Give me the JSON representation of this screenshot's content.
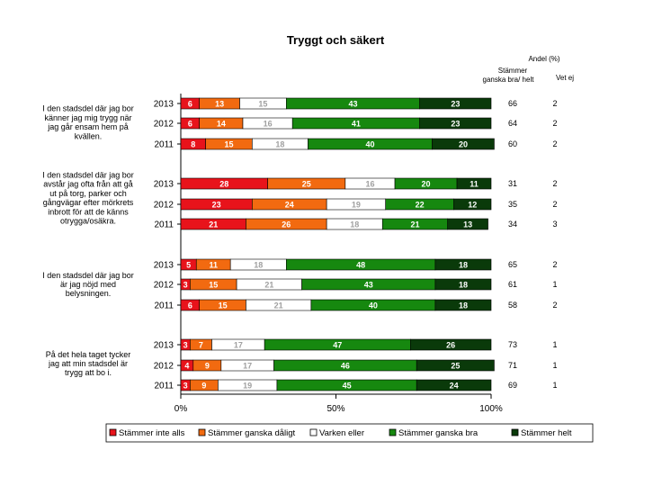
{
  "chart_data": {
    "type": "bar",
    "stacked": true,
    "orientation": "horizontal",
    "title": "Tryggt och säkert",
    "right_header": {
      "title": "Andel (%)",
      "col1": [
        "Stämmer",
        "ganska bra/ helt"
      ],
      "col2": "Vet ej"
    },
    "x_ticks": [
      "0%",
      "50%",
      "100%"
    ],
    "xlim": [
      0,
      100
    ],
    "series": [
      {
        "name": "Stämmer inte alls",
        "color": "#e8131b",
        "label_color": "#ffffff"
      },
      {
        "name": "Stämmer ganska dåligt",
        "color": "#f26a10",
        "label_color": "#ffffff"
      },
      {
        "name": "Varken eller",
        "color": "#ffffff",
        "label_color": "#a0a0a0"
      },
      {
        "name": "Stämmer ganska bra",
        "color": "#16880f",
        "label_color": "#ffffff"
      },
      {
        "name": "Stämmer helt",
        "color": "#0a3a0a",
        "label_color": "#ffffff"
      }
    ],
    "groups": [
      {
        "question": [
          "I den stadsdel där jag bor",
          "känner jag mig trygg när",
          "jag går ensam hem på",
          "kvällen."
        ],
        "rows": [
          {
            "year": "2013",
            "values": [
              6,
              13,
              15,
              43,
              23
            ],
            "agree": "66",
            "dont_know": "2"
          },
          {
            "year": "2012",
            "values": [
              6,
              14,
              16,
              41,
              23
            ],
            "agree": "64",
            "dont_know": "2"
          },
          {
            "year": "2011",
            "values": [
              8,
              15,
              18,
              40,
              20
            ],
            "agree": "60",
            "dont_know": "2"
          }
        ]
      },
      {
        "question": [
          "I den stadsdel där jag bor",
          "avstår jag ofta från att gå",
          "ut på torg, parker och",
          "gångvägar efter mörkrets",
          "inbrott för att de känns",
          "otrygga/osäkra."
        ],
        "rows": [
          {
            "year": "2013",
            "values": [
              28,
              25,
              16,
              20,
              11
            ],
            "agree": "31",
            "dont_know": "2"
          },
          {
            "year": "2012",
            "values": [
              23,
              24,
              19,
              22,
              12
            ],
            "agree": "35",
            "dont_know": "2"
          },
          {
            "year": "2011",
            "values": [
              21,
              26,
              18,
              21,
              13
            ],
            "agree": "34",
            "dont_know": "3"
          }
        ]
      },
      {
        "question": [
          "I den stadsdel där jag bor",
          "är jag nöjd med",
          "belysningen."
        ],
        "rows": [
          {
            "year": "2013",
            "values": [
              5,
              11,
              18,
              48,
              18
            ],
            "agree": "65",
            "dont_know": "2"
          },
          {
            "year": "2012",
            "values": [
              3,
              15,
              21,
              43,
              18
            ],
            "agree": "61",
            "dont_know": "1"
          },
          {
            "year": "2011",
            "values": [
              6,
              15,
              21,
              40,
              18
            ],
            "agree": "58",
            "dont_know": "2"
          }
        ]
      },
      {
        "question": [
          "På det hela taget tycker",
          "jag att min stadsdel är",
          "trygg att bo i."
        ],
        "rows": [
          {
            "year": "2013",
            "values": [
              3,
              7,
              17,
              47,
              26
            ],
            "agree": "73",
            "dont_know": "1"
          },
          {
            "year": "2012",
            "values": [
              4,
              9,
              17,
              46,
              25
            ],
            "agree": "71",
            "dont_know": "1"
          },
          {
            "year": "2011",
            "values": [
              3,
              9,
              19,
              45,
              24
            ],
            "agree": "69",
            "dont_know": "1"
          }
        ]
      }
    ]
  }
}
